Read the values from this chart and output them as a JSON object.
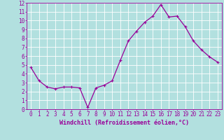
{
  "x": [
    0,
    1,
    2,
    3,
    4,
    5,
    6,
    7,
    8,
    9,
    10,
    11,
    12,
    13,
    14,
    15,
    16,
    17,
    18,
    19,
    20,
    21,
    22,
    23
  ],
  "y": [
    4.7,
    3.2,
    2.5,
    2.3,
    2.5,
    2.5,
    2.4,
    0.2,
    2.4,
    2.7,
    3.2,
    5.5,
    7.7,
    8.8,
    9.8,
    10.5,
    11.8,
    10.4,
    10.5,
    9.3,
    7.7,
    6.7,
    5.9,
    5.3
  ],
  "line_color": "#990099",
  "marker": "+",
  "marker_size": 3,
  "marker_lw": 0.8,
  "xlabel": "Windchill (Refroidissement éolien,°C)",
  "xlim": [
    -0.5,
    23.5
  ],
  "ylim": [
    0,
    12
  ],
  "yticks": [
    0,
    1,
    2,
    3,
    4,
    5,
    6,
    7,
    8,
    9,
    10,
    11,
    12
  ],
  "xticks": [
    0,
    1,
    2,
    3,
    4,
    5,
    6,
    7,
    8,
    9,
    10,
    11,
    12,
    13,
    14,
    15,
    16,
    17,
    18,
    19,
    20,
    21,
    22,
    23
  ],
  "bg_color": "#b2e0df",
  "grid_color": "#ffffff",
  "tick_label_color": "#990099",
  "xlabel_color": "#990099",
  "xlabel_fontsize": 6.0,
  "tick_fontsize": 5.5,
  "linewidth": 0.9
}
